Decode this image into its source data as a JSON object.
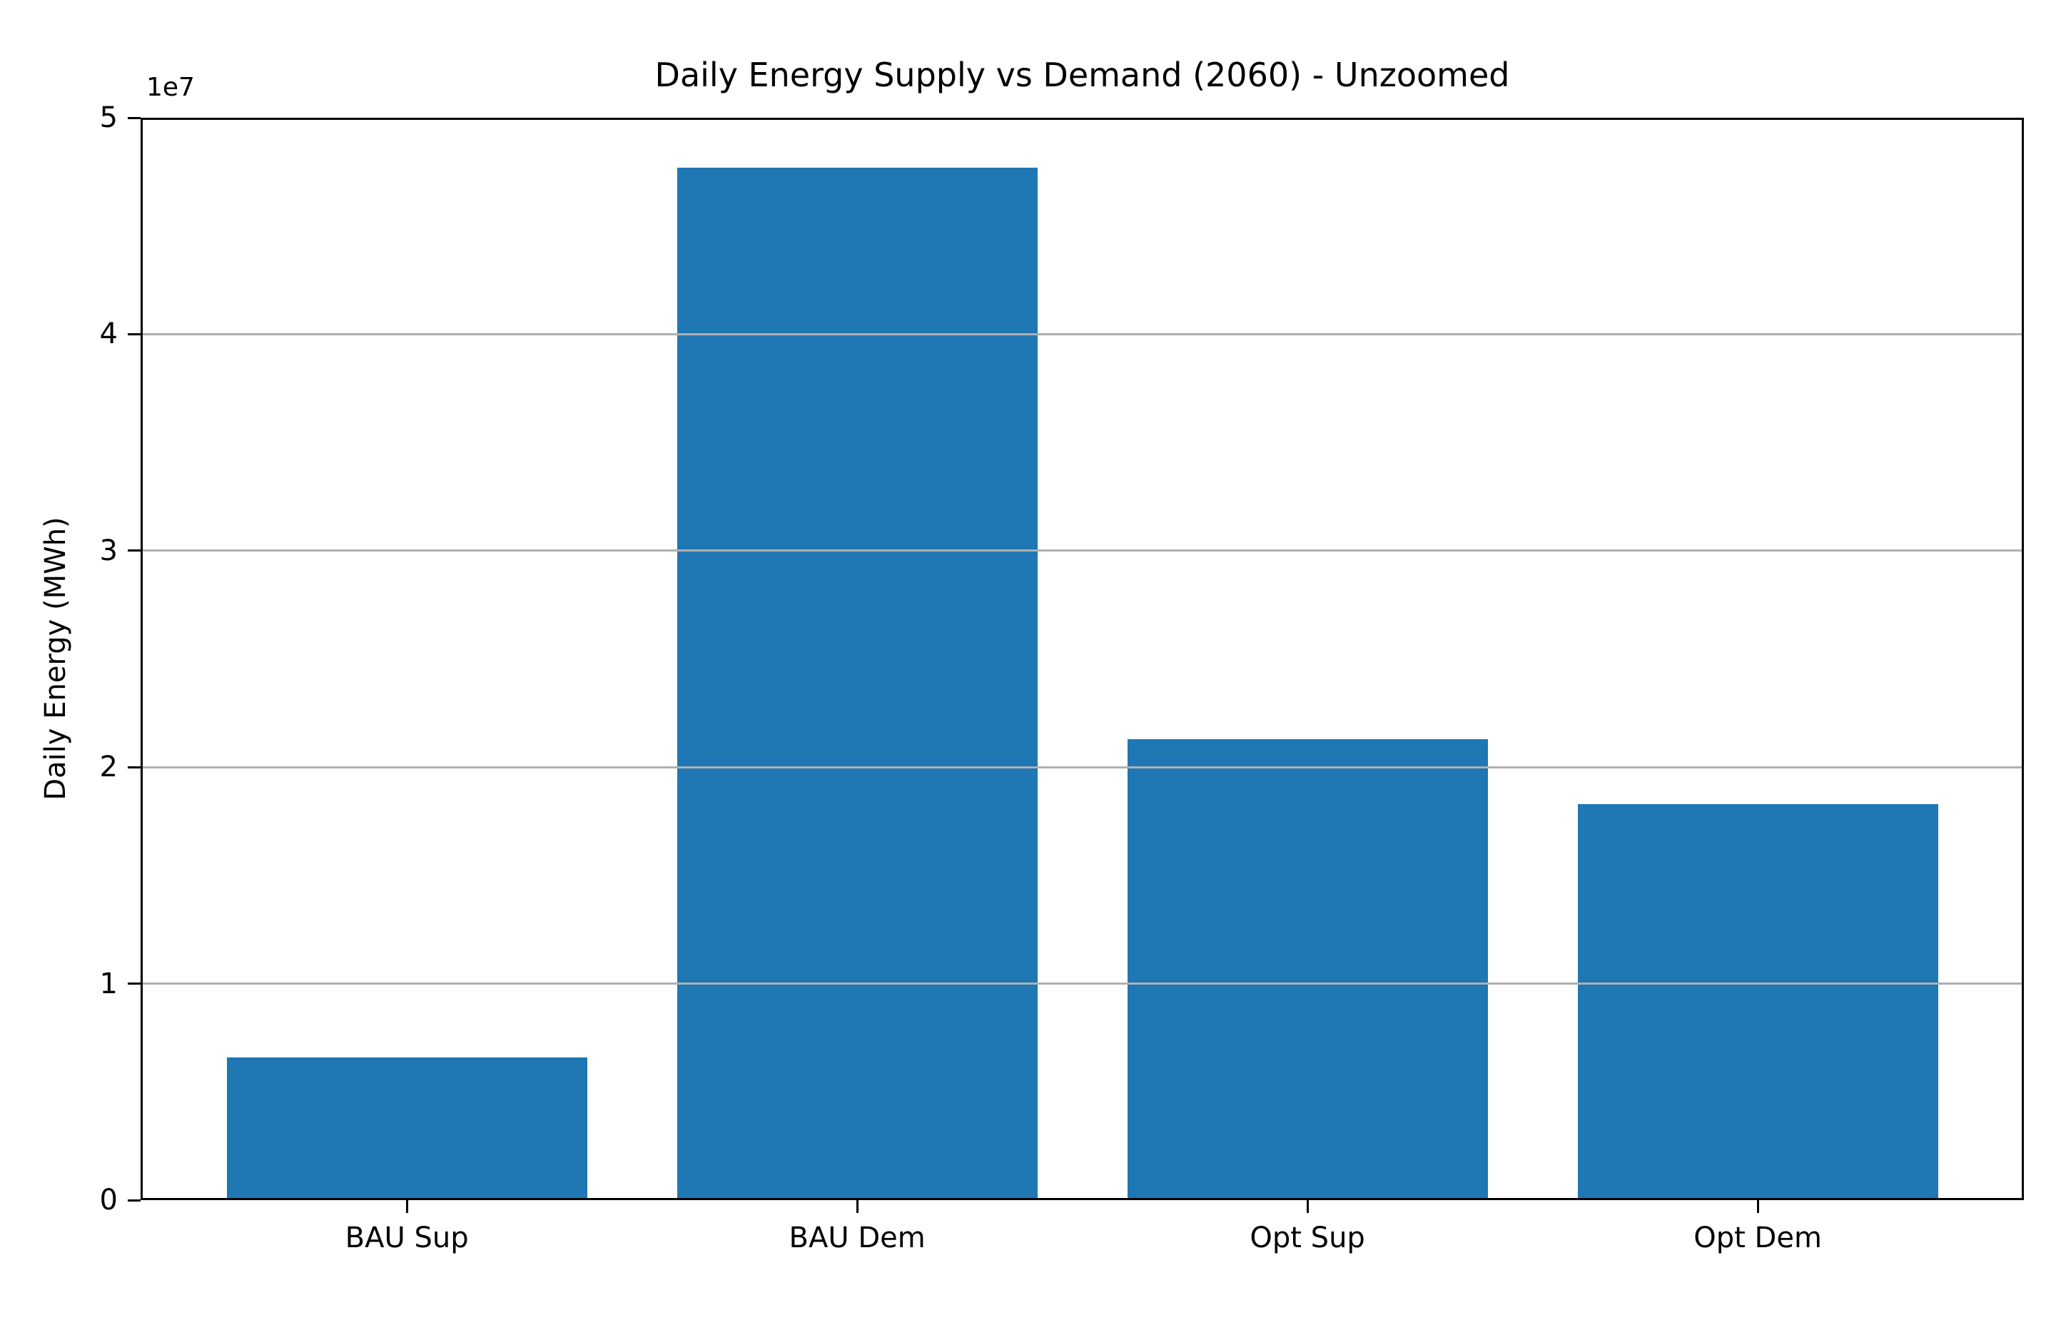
{
  "chart_data": {
    "type": "bar",
    "title": "Daily Energy Supply vs Demand (2060) - Unzoomed",
    "xlabel": "",
    "ylabel": "Daily Energy (MWh)",
    "offset_text": "1e7",
    "categories": [
      "BAU Sup",
      "BAU Dem",
      "Opt Sup",
      "Opt Dem"
    ],
    "values": [
      6600000,
      47700000,
      21300000,
      18300000
    ],
    "ylim": [
      0,
      50000000
    ],
    "ytick_values": [
      0,
      10000000,
      20000000,
      30000000,
      40000000,
      50000000
    ],
    "ytick_labels": [
      "0",
      "1",
      "2",
      "3",
      "4",
      "5"
    ],
    "grid_values": [
      10000000,
      20000000,
      30000000,
      40000000
    ],
    "grid_on": true,
    "legend": "none",
    "bar_color": "#1f77b4",
    "grid_color": "#b0b0b0",
    "axis_color": "#000000",
    "background_color": "#ffffff"
  }
}
